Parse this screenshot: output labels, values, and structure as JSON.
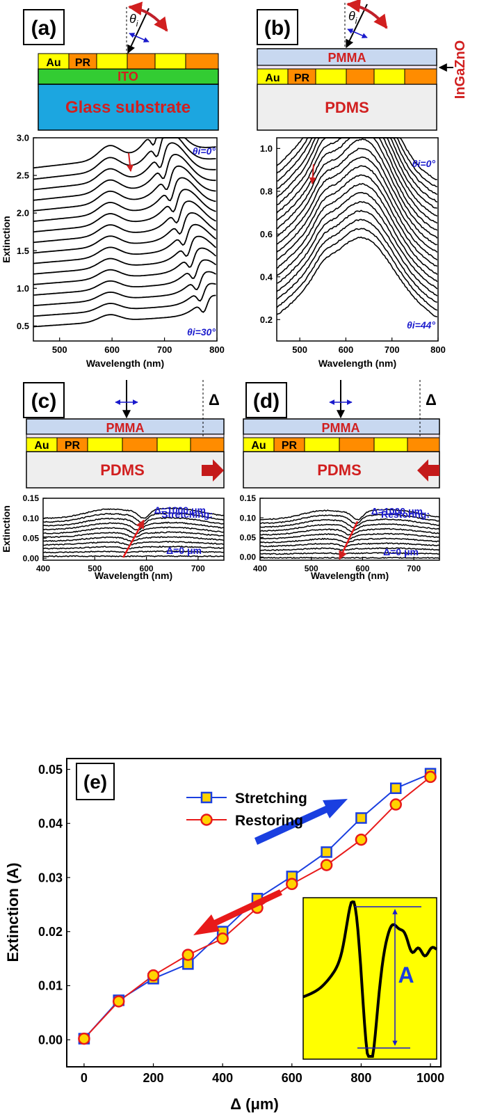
{
  "colors": {
    "gold": "#ffff00",
    "pr": "#ff8c00",
    "ito": "#33cc33",
    "glass": "#1ca6e0",
    "pmma": "#c8d8f0",
    "pdms": "#eeeeee",
    "label_red": "#d11f1f",
    "annot_blue": "#1a1acc",
    "sq_stroke": "#1a3fe0",
    "circ_stroke": "#e81a1a",
    "inset_bg": "#ffff00"
  },
  "panels": {
    "a": {
      "tag": "(a)",
      "layer_au": "Au",
      "layer_pr": "PR",
      "ito": "ITO",
      "substrate": "Glass substrate",
      "theta": "θ",
      "theta_sub": "i"
    },
    "b": {
      "tag": "(b)",
      "pmma": "PMMA",
      "layer_au": "Au",
      "layer_pr": "PR",
      "pdms": "PDMS",
      "side_label": "InGaZnO",
      "theta": "θ",
      "theta_sub": "i"
    },
    "c": {
      "tag": "(c)",
      "pmma": "PMMA",
      "layer_au": "Au",
      "layer_pr": "PR",
      "pdms": "PDMS",
      "delta": "Δ"
    },
    "d": {
      "tag": "(d)",
      "pmma": "PMMA",
      "layer_au": "Au",
      "layer_pr": "PR",
      "pdms": "PDMS",
      "delta": "Δ"
    },
    "e": {
      "tag": "(e)"
    }
  },
  "chart_data": [
    {
      "id": "a",
      "type": "line",
      "xlabel": "Wavelength (nm)",
      "ylabel": "Extinction",
      "xlim": [
        450,
        800
      ],
      "ylim": [
        0.3,
        3.0
      ],
      "xticks": [
        500,
        600,
        700,
        800
      ],
      "yticks": [
        0.5,
        1.0,
        1.5,
        2.0,
        2.5,
        3.0
      ],
      "ytick_labels": [
        "0.5",
        "1.0",
        "1.5",
        "2.0",
        "2.5",
        "3.0"
      ],
      "annot_top": "θi=0°",
      "annot_bottom": "θi=30°",
      "angles_deg": [
        0,
        2,
        4,
        6,
        8,
        10,
        12,
        14,
        16,
        18,
        20,
        22,
        24,
        26,
        28,
        30
      ],
      "baselines": [
        2.55,
        2.4,
        2.26,
        2.12,
        1.98,
        1.84,
        1.7,
        1.56,
        1.42,
        1.28,
        1.14,
        1.0,
        0.86,
        0.72,
        0.58,
        0.44
      ],
      "dip_wavelength_nm": 625,
      "peak_top_curve": {
        "wavelength_nm": 700,
        "extinction": 2.95
      }
    },
    {
      "id": "b",
      "type": "line",
      "xlabel": "Wavelength (nm)",
      "ylabel": "",
      "xlim": [
        450,
        800
      ],
      "ylim": [
        0.1,
        1.05
      ],
      "xticks": [
        500,
        600,
        700,
        800
      ],
      "yticks": [
        0.2,
        0.4,
        0.6,
        0.8,
        1.0
      ],
      "ytick_labels": [
        "0.2",
        "0.4",
        "0.6",
        "0.8",
        "1.0"
      ],
      "annot_top": "θi=0°",
      "annot_bottom": "θi=44°",
      "baselines": [
        0.66,
        0.625,
        0.59,
        0.555,
        0.52,
        0.485,
        0.45,
        0.415,
        0.38,
        0.345,
        0.31,
        0.275,
        0.24,
        0.205,
        0.17,
        0.135,
        0.1,
        0.065,
        0.03,
        -0.005
      ],
      "dip_wavelength_nm": 555,
      "peak_top_curve": {
        "wavelength_nm": 650,
        "extinction": 1.03
      }
    },
    {
      "id": "c",
      "type": "line",
      "xlabel": "Wavelength (nm)",
      "ylabel": "Extinction",
      "xlim": [
        400,
        750
      ],
      "ylim": [
        -0.005,
        0.15
      ],
      "xticks": [
        400,
        500,
        600,
        700
      ],
      "yticks": [
        0.0,
        0.05,
        0.1,
        0.15
      ],
      "ytick_labels": [
        "0.00",
        "0.05",
        "0.10",
        "0.15"
      ],
      "annot_title": "Stretching:",
      "annot_top": "Δ=1000 μm",
      "annot_bottom": "Δ=0 μm",
      "baselines": [
        0.005,
        0.0145,
        0.024,
        0.0335,
        0.043,
        0.0525,
        0.062,
        0.0715,
        0.081,
        0.0905,
        0.1
      ],
      "peak_top_curve": {
        "wavelength_nm": 545,
        "extinction": 0.143
      },
      "dip_start_nm": 555,
      "dip_end_nm": 595
    },
    {
      "id": "d",
      "type": "line",
      "xlabel": "Wavelength (nm)",
      "ylabel": "",
      "xlim": [
        400,
        750
      ],
      "ylim": [
        -0.008,
        0.15
      ],
      "xticks": [
        400,
        500,
        600,
        700
      ],
      "yticks": [
        0.0,
        0.05,
        0.1,
        0.15
      ],
      "ytick_labels": [
        "0.00",
        "0.05",
        "0.10",
        "0.15"
      ],
      "annot_title": "Restoring:",
      "annot_top": "Δ=1000 μm",
      "annot_bottom": "Δ=0 μm",
      "baselines": [
        -0.002,
        0.0078,
        0.0176,
        0.0274,
        0.0372,
        0.047,
        0.0568,
        0.0666,
        0.0764,
        0.0862,
        0.096
      ],
      "peak_top_curve": {
        "wavelength_nm": 545,
        "extinction": 0.146
      },
      "dip_start_nm": 555,
      "dip_end_nm": 590
    },
    {
      "id": "e",
      "type": "line",
      "xlabel": "Δ (μm)",
      "ylabel": "Extinction (A)",
      "xlim": [
        -50,
        1030
      ],
      "ylim": [
        -0.005,
        0.052
      ],
      "xticks": [
        0,
        200,
        400,
        600,
        800,
        1000
      ],
      "xtick_labels": [
        "0",
        "200",
        "400",
        "600",
        "800",
        "1000"
      ],
      "yticks": [
        0.0,
        0.01,
        0.02,
        0.03,
        0.04,
        0.05
      ],
      "ytick_labels": [
        "0.00",
        "0.01",
        "0.02",
        "0.03",
        "0.04",
        "0.05"
      ],
      "x": [
        0,
        100,
        200,
        300,
        400,
        500,
        600,
        700,
        800,
        900,
        1000
      ],
      "series": [
        {
          "name": "Stretching",
          "marker": "square",
          "values": [
            0.0002,
            0.0073,
            0.0113,
            0.014,
            0.02,
            0.0261,
            0.0302,
            0.0347,
            0.041,
            0.0465,
            0.0492
          ]
        },
        {
          "name": "Restoring",
          "marker": "circle",
          "values": [
            0.0002,
            0.0071,
            0.0119,
            0.0157,
            0.0187,
            0.0244,
            0.0288,
            0.0323,
            0.037,
            0.0435,
            0.0486
          ]
        }
      ],
      "inset_label": "A"
    }
  ]
}
